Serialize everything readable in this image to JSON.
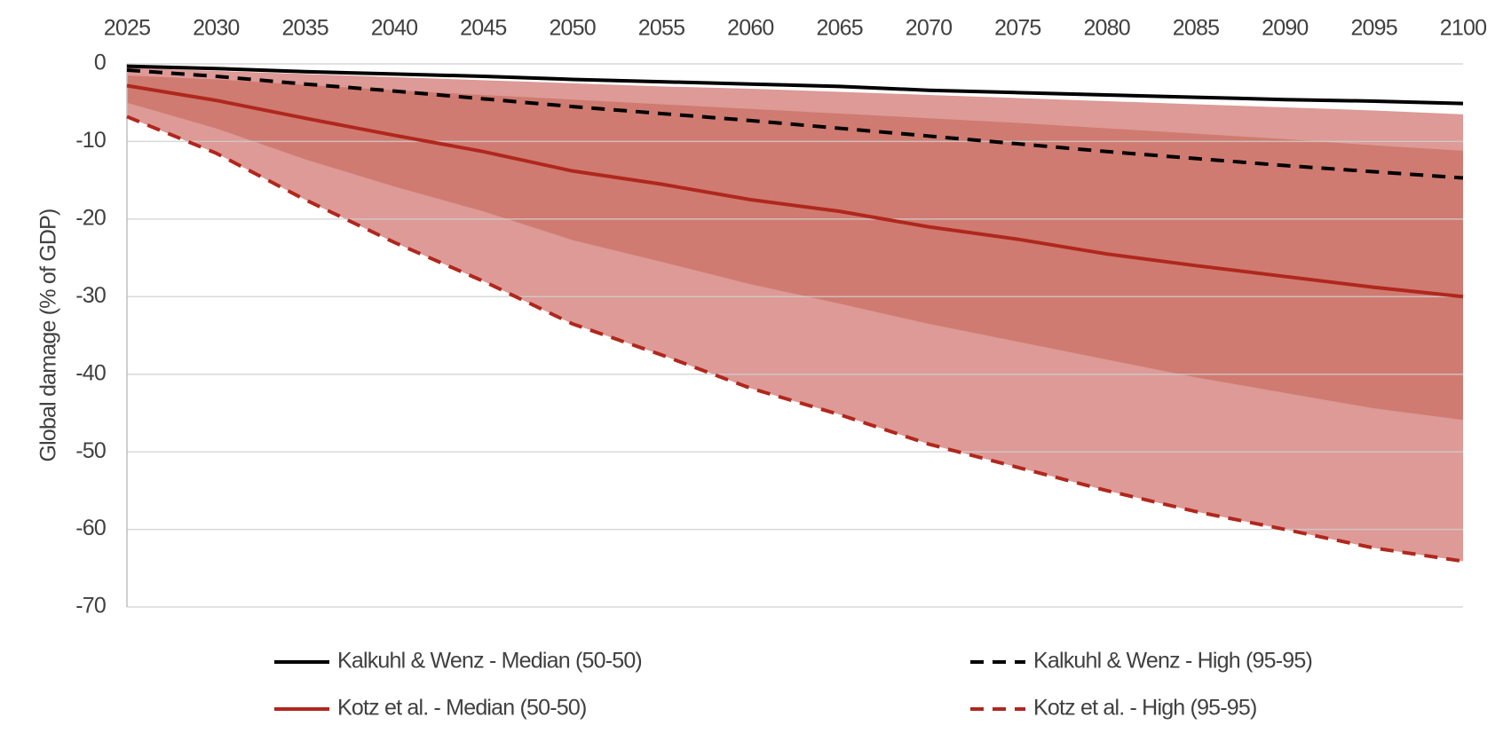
{
  "chart_data": {
    "type": "line",
    "y_label": "Global damage (% of GDP)",
    "x": [
      2025,
      2030,
      2035,
      2040,
      2045,
      2050,
      2055,
      2060,
      2065,
      2070,
      2075,
      2080,
      2085,
      2090,
      2095,
      2100
    ],
    "xlim": [
      2025,
      2100
    ],
    "xticks": [
      2025,
      2030,
      2035,
      2040,
      2045,
      2050,
      2055,
      2060,
      2065,
      2070,
      2075,
      2080,
      2085,
      2090,
      2095,
      2100
    ],
    "ylim": [
      -70,
      0
    ],
    "yticks": [
      0,
      -10,
      -20,
      -30,
      -40,
      -50,
      -60,
      -70
    ],
    "grid": true,
    "legend": "bottom",
    "bands": [
      {
        "color": "#dd9a96",
        "upper": [
          -0.5,
          -0.9,
          -1.3,
          -1.7,
          -2.1,
          -2.5,
          -2.9,
          -3.2,
          -3.6,
          -4.0,
          -4.4,
          -4.8,
          -5.2,
          -5.6,
          -6.0,
          -6.5
        ],
        "lower": [
          -6.8,
          -11.5,
          -17.5,
          -23.0,
          -28.0,
          -33.5,
          -37.5,
          -41.8,
          -45.2,
          -49.0,
          -52.0,
          -55.0,
          -57.7,
          -60.0,
          -62.4,
          -64.1
        ]
      },
      {
        "color": "#cf7b71",
        "upper": [
          -1.5,
          -2.0,
          -2.7,
          -3.4,
          -4.0,
          -4.6,
          -5.2,
          -5.8,
          -6.4,
          -7.0,
          -7.6,
          -8.3,
          -9.0,
          -9.7,
          -10.5,
          -11.2
        ],
        "lower": [
          -5.0,
          -8.3,
          -12.3,
          -15.8,
          -19.0,
          -22.7,
          -25.5,
          -28.4,
          -30.9,
          -33.5,
          -35.8,
          -38.1,
          -40.4,
          -42.4,
          -44.4,
          -45.9
        ]
      }
    ],
    "series": [
      {
        "name": "Kalkuhl & Wenz - Median (50-50)",
        "color": "#000000",
        "dashed": false,
        "values": [
          -0.3,
          -0.6,
          -1.0,
          -1.3,
          -1.6,
          -2.0,
          -2.3,
          -2.6,
          -2.9,
          -3.4,
          -3.7,
          -4.0,
          -4.3,
          -4.6,
          -4.8,
          -5.1
        ]
      },
      {
        "name": "Kalkuhl & Wenz - High (95-95)",
        "color": "#000000",
        "dashed": true,
        "values": [
          -0.8,
          -1.6,
          -2.6,
          -3.5,
          -4.5,
          -5.5,
          -6.4,
          -7.3,
          -8.3,
          -9.3,
          -10.3,
          -11.3,
          -12.2,
          -13.1,
          -13.9,
          -14.7
        ]
      },
      {
        "name": "Kotz et al. - Median (50-50)",
        "color": "#b0271d",
        "dashed": false,
        "values": [
          -2.8,
          -4.7,
          -7.0,
          -9.2,
          -11.3,
          -13.8,
          -15.5,
          -17.5,
          -19.0,
          -21.0,
          -22.6,
          -24.5,
          -26.0,
          -27.4,
          -28.8,
          -30.0
        ]
      },
      {
        "name": "Kotz et al. - High (95-95)",
        "color": "#b0271d",
        "dashed": true,
        "values": [
          -6.8,
          -11.5,
          -17.5,
          -23.0,
          -28.0,
          -33.5,
          -37.5,
          -41.8,
          -45.2,
          -49.0,
          -52.0,
          -55.0,
          -57.7,
          -60.0,
          -62.4,
          -64.1
        ]
      }
    ]
  }
}
